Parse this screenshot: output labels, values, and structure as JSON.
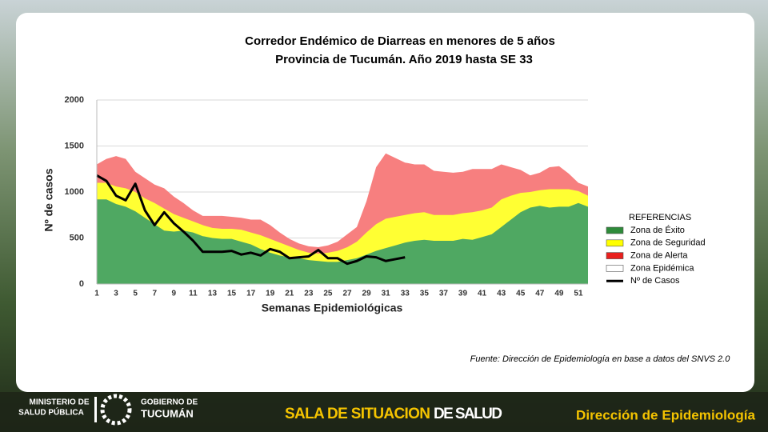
{
  "chart_data": {
    "type": "corridor",
    "title": "Corredor Endémico de Diarreas en menores de 5 años",
    "subtitle": "Provincia de Tucumán.  Año 2019 hasta SE 33",
    "x_label": "Semanas Epidemiológicas",
    "y_label": "Nº de casos",
    "categories": [
      1,
      null,
      3,
      null,
      5,
      null,
      7,
      null,
      9,
      null,
      11,
      null,
      13,
      null,
      15,
      null,
      17,
      null,
      19,
      null,
      21,
      null,
      23,
      null,
      25,
      null,
      27,
      null,
      29,
      null,
      31,
      null,
      33,
      null,
      35,
      null,
      37,
      null,
      39,
      null,
      41,
      null,
      43,
      null,
      45,
      null,
      47,
      null,
      49,
      null,
      51,
      null
    ],
    "ylim": [
      0,
      2000
    ],
    "yticks": [
      0,
      500,
      1000,
      1500,
      2000
    ],
    "grid": true,
    "series": [
      {
        "name": "Zona de Alerta",
        "color": "#f77f7f",
        "legend_color": "#e8201e",
        "kind": "area",
        "values": [
          1300,
          1360,
          1390,
          1360,
          1220,
          1150,
          1080,
          1040,
          950,
          880,
          800,
          740,
          740,
          740,
          730,
          720,
          700,
          700,
          640,
          560,
          490,
          440,
          410,
          400,
          420,
          460,
          540,
          620,
          900,
          1270,
          1420,
          1370,
          1320,
          1300,
          1300,
          1230,
          1220,
          1210,
          1220,
          1250,
          1250,
          1250,
          1300,
          1270,
          1240,
          1180,
          1210,
          1270,
          1280,
          1200,
          1100,
          1060
        ]
      },
      {
        "name": "Zona de Seguridad",
        "color": "#ffff33",
        "legend_color": "#ffff00",
        "kind": "area",
        "values": [
          1100,
          1100,
          1060,
          1040,
          1000,
          930,
          880,
          820,
          760,
          720,
          680,
          640,
          610,
          600,
          600,
          590,
          560,
          530,
          490,
          450,
          410,
          370,
          340,
          330,
          340,
          360,
          400,
          460,
          560,
          650,
          710,
          730,
          750,
          770,
          780,
          750,
          750,
          750,
          770,
          780,
          800,
          830,
          920,
          960,
          990,
          1000,
          1020,
          1030,
          1030,
          1030,
          1010,
          960
        ]
      },
      {
        "name": "Zona de Éxito",
        "color": "#4fa862",
        "legend_color": "#2e8b3a",
        "kind": "area",
        "values": [
          920,
          920,
          870,
          840,
          790,
          720,
          650,
          580,
          570,
          580,
          560,
          520,
          500,
          490,
          490,
          460,
          430,
          380,
          340,
          310,
          290,
          280,
          260,
          250,
          240,
          240,
          260,
          280,
          320,
          360,
          390,
          420,
          450,
          470,
          480,
          470,
          470,
          470,
          490,
          480,
          510,
          540,
          620,
          700,
          780,
          830,
          850,
          830,
          840,
          840,
          880,
          840
        ]
      },
      {
        "name": "Nº de Casos",
        "color": "#000000",
        "kind": "line",
        "values": [
          1180,
          1120,
          960,
          910,
          1090,
          800,
          640,
          780,
          660,
          570,
          470,
          350,
          350,
          350,
          360,
          320,
          340,
          310,
          380,
          350,
          280,
          290,
          300,
          370,
          280,
          280,
          220,
          250,
          300,
          290,
          250,
          270,
          290,
          null,
          null,
          null,
          null,
          null,
          null,
          null,
          null,
          null,
          null,
          null,
          null,
          null,
          null,
          null,
          null,
          null,
          null,
          null
        ]
      }
    ],
    "legend_title": "REFERENCIAS",
    "legend_extra": {
      "name": "Zona Epidémica",
      "color": "#ffffff"
    },
    "source": "Fuente: Dirección de Epidemiología en base a datos del SNVS 2.0"
  },
  "footer": {
    "ministry_1": "MINISTERIO DE",
    "ministry_2": "SALUD PÚBLICA",
    "gov_1": "GOBIERNO DE",
    "gov_2": "TUCUMÁN",
    "sala_1": "SALA DE SITUACION",
    "sala_2": "DE SALUD",
    "direccion": "Dirección de Epidemiología"
  }
}
